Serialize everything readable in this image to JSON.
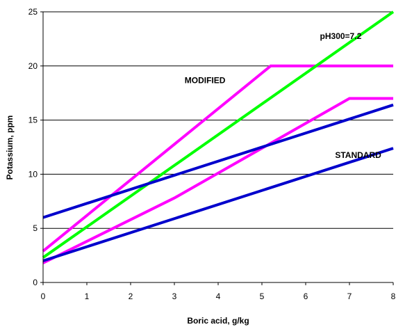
{
  "chart_data": {
    "type": "line",
    "title": "",
    "xlabel": "Boric acid, g/kg",
    "ylabel": "Potassium, ppm",
    "xlim": [
      0,
      8
    ],
    "ylim": [
      0,
      25
    ],
    "x_ticks": [
      0,
      1,
      2,
      3,
      4,
      5,
      6,
      7,
      8
    ],
    "y_ticks": [
      0,
      5,
      10,
      15,
      20,
      25
    ],
    "grid": "horizontal",
    "legend": "none",
    "series": [
      {
        "color": "#ff00ff",
        "points": [
          [
            0,
            2.9
          ],
          [
            5.2,
            20.0
          ],
          [
            8,
            20.0
          ]
        ]
      },
      {
        "color": "#00ff00",
        "points": [
          [
            0,
            2.3
          ],
          [
            8,
            25.0
          ]
        ]
      },
      {
        "color": "#ff00ff",
        "points": [
          [
            0,
            1.8
          ],
          [
            3,
            7.8
          ],
          [
            7,
            17.0
          ],
          [
            8,
            17.0
          ]
        ]
      },
      {
        "color": "#0000cc",
        "points": [
          [
            0,
            6.0
          ],
          [
            8,
            16.4
          ]
        ]
      },
      {
        "color": "#0000cc",
        "points": [
          [
            0,
            2.0
          ],
          [
            8,
            12.4
          ]
        ]
      }
    ],
    "annotations": [
      {
        "text": "pH300=7.2",
        "x": 6.8,
        "y": 22.5
      },
      {
        "text": "MODIFIED",
        "x": 3.7,
        "y": 18.4
      },
      {
        "text": "STANDARD",
        "x": 7.2,
        "y": 11.5
      }
    ]
  }
}
